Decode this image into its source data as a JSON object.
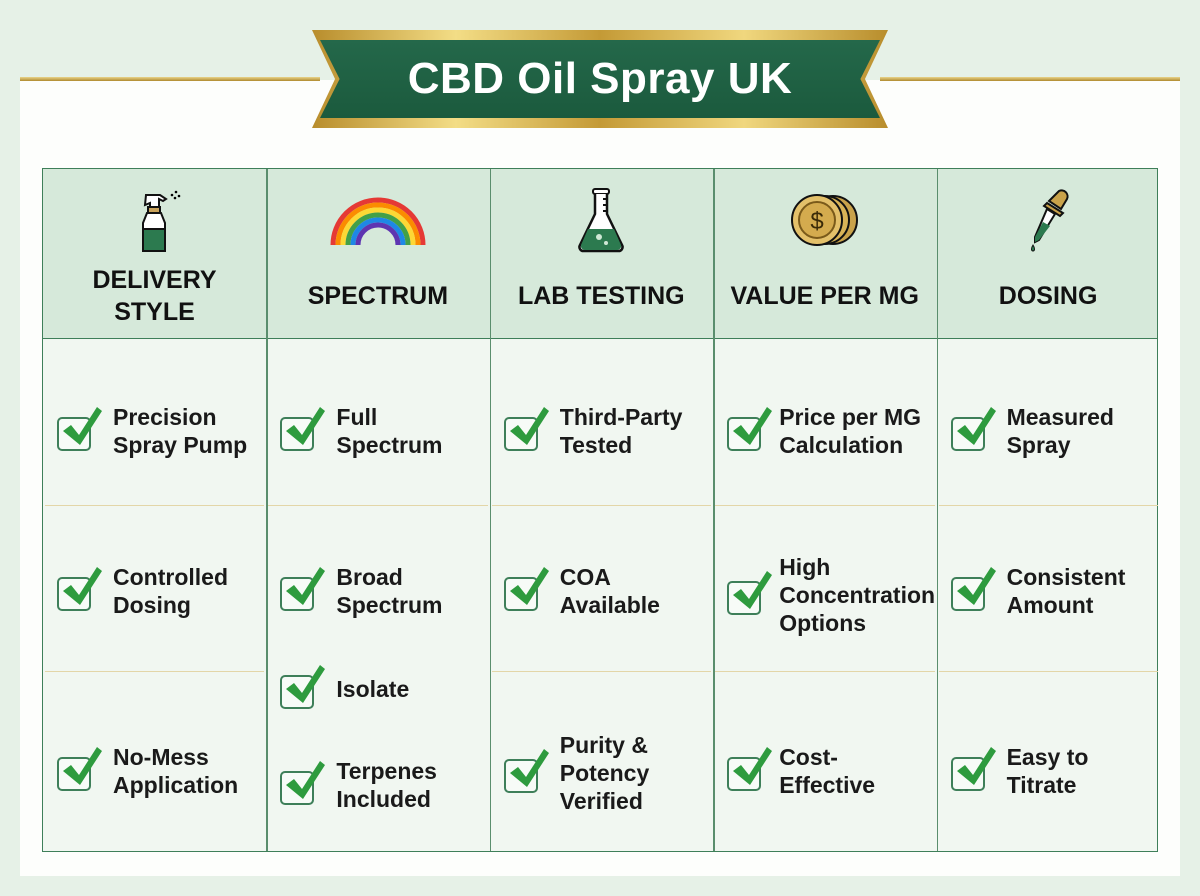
{
  "title": "CBD Oil Spray UK",
  "colors": {
    "banner_green": "#1f6244",
    "gold": "#d9b95a",
    "check_green": "#2e9b3e",
    "header_bg": "#d6e9da",
    "border": "#3e7f59"
  },
  "columns": [
    {
      "label": "DELIVERY STYLE",
      "icon": "spray-bottle-icon",
      "items": [
        "Precision Spray Pump",
        "Controlled Dosing",
        "No-Mess Application"
      ]
    },
    {
      "label": "SPECTRUM",
      "icon": "rainbow-icon",
      "items": [
        "Full Spectrum",
        "Broad Spectrum",
        "Isolate",
        "Terpenes Included"
      ]
    },
    {
      "label": "LAB TESTING",
      "icon": "flask-icon",
      "items": [
        "Third-Party Tested",
        "COA Available",
        "Purity & Potency Verified"
      ]
    },
    {
      "label": "VALUE PER MG",
      "icon": "coins-icon",
      "items": [
        "Price per MG Calculation",
        "High Concentration Options",
        "Cost-Effective"
      ]
    },
    {
      "label": "DOSING",
      "icon": "dropper-icon",
      "items": [
        "Measured Spray",
        "Consistent Amount",
        "Easy to Titrate"
      ]
    }
  ]
}
